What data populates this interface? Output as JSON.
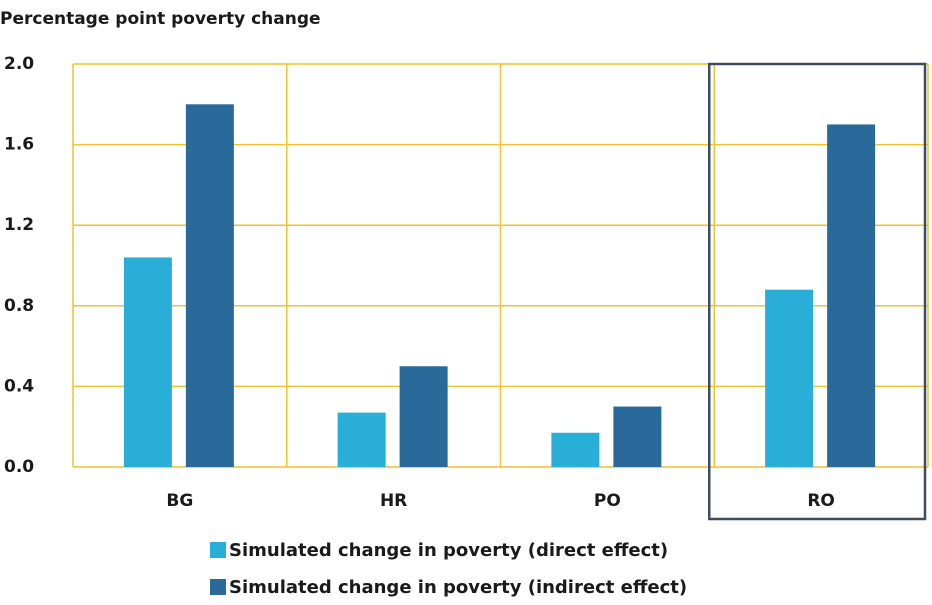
{
  "chart_data": {
    "type": "bar",
    "title": "Percentage point poverty change",
    "categories": [
      "BG",
      "HR",
      "PO",
      "RO"
    ],
    "series": [
      {
        "name": "Simulated change in poverty (direct effect)",
        "color": "#29aed8",
        "values": [
          1.04,
          0.27,
          0.17,
          0.88
        ]
      },
      {
        "name": "Simulated change in poverty (indirect effect)",
        "color": "#2a6a9b",
        "values": [
          1.8,
          0.5,
          0.3,
          1.7
        ]
      }
    ],
    "ylim": [
      0,
      2
    ],
    "yticks": [
      {
        "value": 0,
        "label": "0.0"
      },
      0.4,
      0.8,
      1.2,
      1.6,
      {
        "value": 2,
        "label": "2.0"
      }
    ],
    "grid": true,
    "grid_color": "#f2c232",
    "highlight": "RO",
    "highlight_color": "#3d4d5f"
  }
}
